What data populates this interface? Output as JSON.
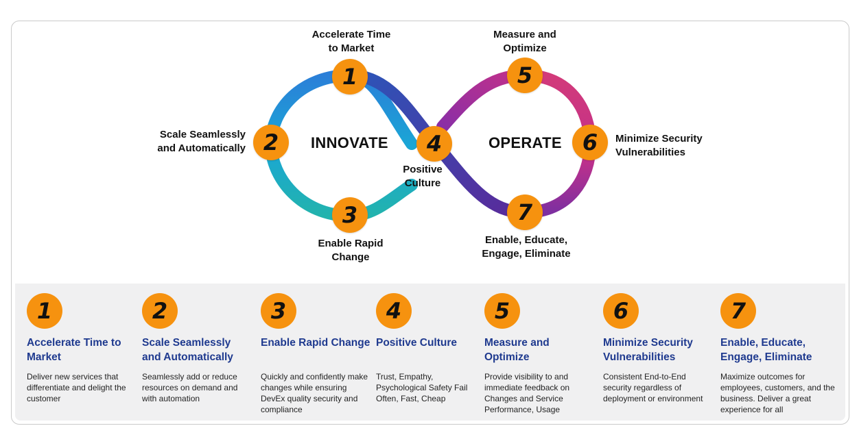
{
  "diagram": {
    "left_mode": "INNOVATE",
    "right_mode": "OPERATE",
    "nodes": [
      {
        "number": "1",
        "label_line1": "Accelerate Time",
        "label_line2": "to Market"
      },
      {
        "number": "2",
        "label_line1": "Scale Seamlessly",
        "label_line2": "and Automatically"
      },
      {
        "number": "3",
        "label_line1": "Enable Rapid",
        "label_line2": "Change"
      },
      {
        "number": "4",
        "label_line1": "Positive",
        "label_line2": "Culture"
      },
      {
        "number": "5",
        "label_line1": "Measure and",
        "label_line2": "Optimize"
      },
      {
        "number": "6",
        "label_line1": "Minimize Security",
        "label_line2": "Vulnerabilities"
      },
      {
        "number": "7",
        "label_line1": "Enable, Educate,",
        "label_line2": "Engage, Eliminate"
      }
    ],
    "colors": {
      "badge": "#f6920f",
      "title_blue": "#1f3a8f",
      "loop_left": "#1fa3d6",
      "loop_right": "#d6326e",
      "loop_mid": "#4b2c8f"
    }
  },
  "cards": [
    {
      "number": "1",
      "title": "Accelerate Time to Market",
      "description": "Deliver new services that differentiate and delight the customer"
    },
    {
      "number": "2",
      "title": "Scale Seamlessly and Automatically",
      "description": "Seamlessly add or reduce resources on demand and with automation"
    },
    {
      "number": "3",
      "title": "Enable Rapid Change",
      "description": "Quickly and confidently make changes while ensuring DevEx quality security and compliance"
    },
    {
      "number": "4",
      "title": "Positive Culture",
      "description": "Trust, Empathy, Psychological Safety Fail Often, Fast, Cheap"
    },
    {
      "number": "5",
      "title": "Measure and Optimize",
      "description": "Provide visibility to and immediate feedback on Changes and Service Performance, Usage"
    },
    {
      "number": "6",
      "title": "Minimize Security Vulnerabilities",
      "description": "Consistent End-to-End security regardless of deployment or environment"
    },
    {
      "number": "7",
      "title": "Enable, Educate, Engage, Eliminate",
      "description": "Maximize outcomes for employees, customers, and the business. Deliver a great experience for all"
    }
  ]
}
